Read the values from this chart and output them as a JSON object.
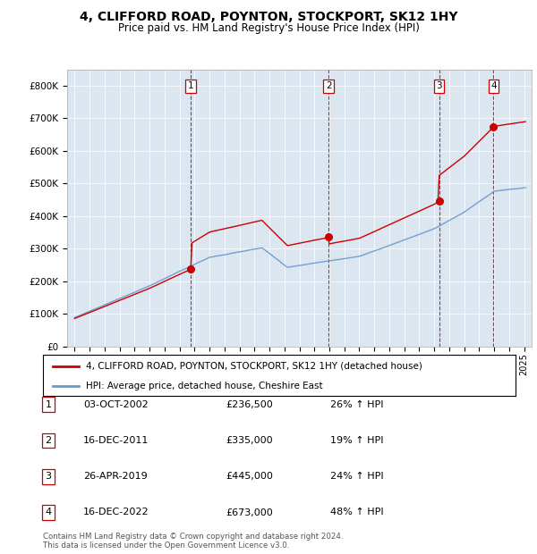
{
  "title": "4, CLIFFORD ROAD, POYNTON, STOCKPORT, SK12 1HY",
  "subtitle": "Price paid vs. HM Land Registry's House Price Index (HPI)",
  "legend_label1": "4, CLIFFORD ROAD, POYNTON, STOCKPORT, SK12 1HY (detached house)",
  "legend_label2": "HPI: Average price, detached house, Cheshire East",
  "footer": "Contains HM Land Registry data © Crown copyright and database right 2024.\nThis data is licensed under the Open Government Licence v3.0.",
  "sales": [
    {
      "num": 1,
      "date_label": "03-OCT-2002",
      "price_label": "£236,500",
      "change": "26% ↑ HPI",
      "year": 2002.75
    },
    {
      "num": 2,
      "date_label": "16-DEC-2011",
      "price_label": "£335,000",
      "change": "19% ↑ HPI",
      "year": 2011.96
    },
    {
      "num": 3,
      "date_label": "26-APR-2019",
      "price_label": "£445,000",
      "change": "24% ↑ HPI",
      "year": 2019.32
    },
    {
      "num": 4,
      "date_label": "16-DEC-2022",
      "price_label": "£673,000",
      "change": "48% ↑ HPI",
      "year": 2022.96
    }
  ],
  "sale_prices": [
    236500,
    335000,
    445000,
    673000
  ],
  "plot_bg": "#dce6f1",
  "red_color": "#cc0000",
  "blue_color": "#6699cc",
  "ylim": [
    0,
    850000
  ],
  "ytick_vals": [
    0,
    100000,
    200000,
    300000,
    400000,
    500000,
    600000,
    700000,
    800000
  ],
  "ytick_labels": [
    "£0",
    "£100K",
    "£200K",
    "£300K",
    "£400K",
    "£500K",
    "£600K",
    "£700K",
    "£800K"
  ],
  "xlim_start": 1994.5,
  "xlim_end": 2025.5,
  "xtick_start": 1995,
  "xtick_end": 2026
}
